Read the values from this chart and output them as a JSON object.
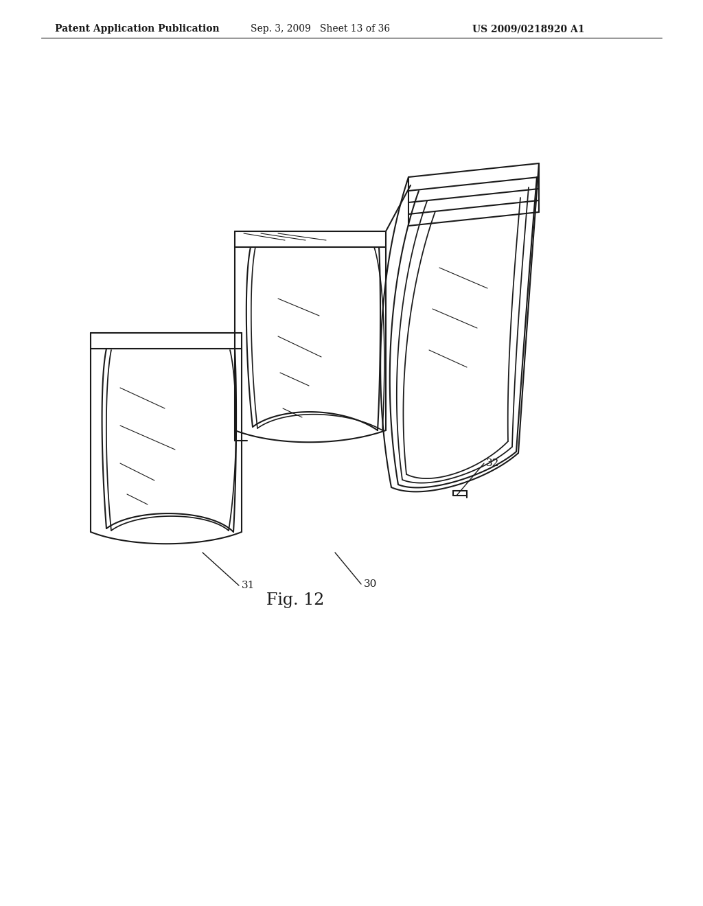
{
  "header_left": "Patent Application Publication",
  "header_center": "Sep. 3, 2009   Sheet 13 of 36",
  "header_right": "US 2009/0218920 A1",
  "figure_label": "Fig. 12",
  "label_30": "30",
  "label_31": "31",
  "label_32": "32",
  "bg_color": "#ffffff",
  "line_color": "#1a1a1a",
  "line_width": 1.5,
  "header_fontsize": 10,
  "figure_label_fontsize": 17
}
